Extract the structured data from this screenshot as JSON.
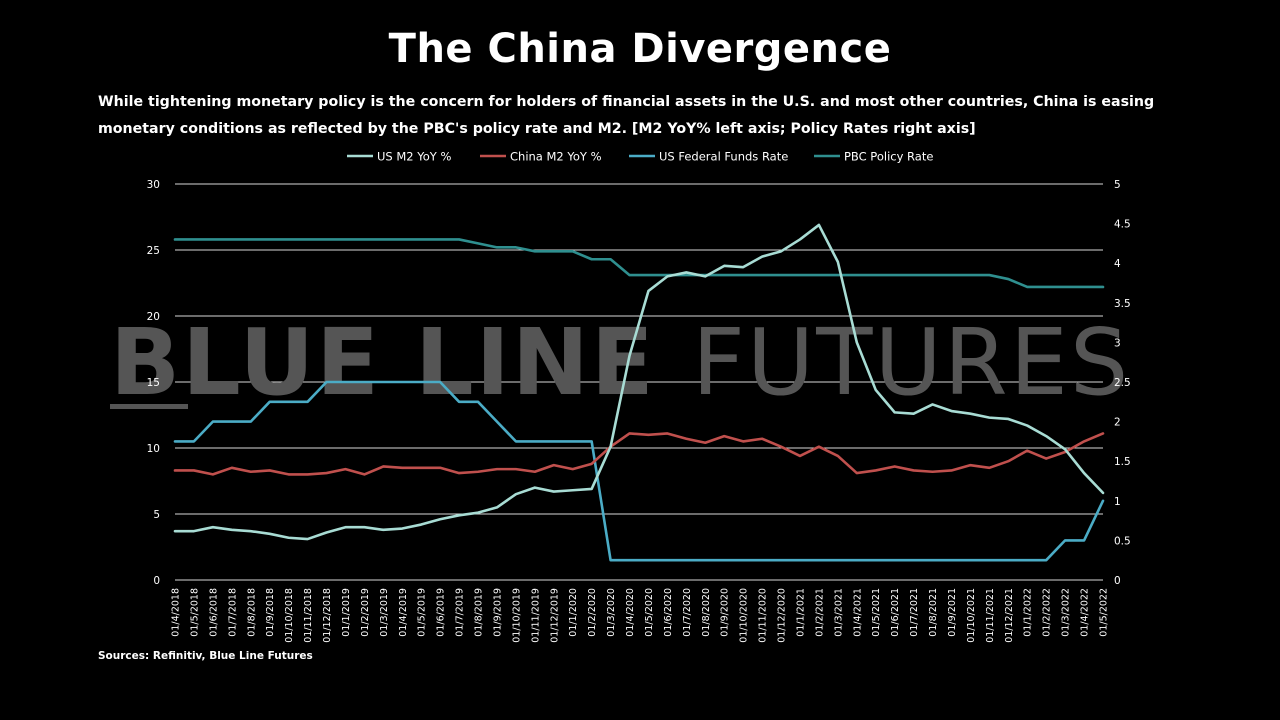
{
  "title": "The China Divergence",
  "subtitle": "While tightening monetary policy is the concern for holders of financial assets in the U.S. and most other countries, China is easing monetary conditions as reflected by the PBC's policy rate and M2. [M2 YoY% left axis; Policy Rates right axis]",
  "source": "Sources: Refinitiv, Blue Line Futures",
  "watermark": {
    "bold": "BLUE LINE",
    "light": "FUTURES"
  },
  "chart_data": {
    "type": "line",
    "x": [
      "01/4/2018",
      "01/5/2018",
      "01/6/2018",
      "01/7/2018",
      "01/8/2018",
      "01/9/2018",
      "01/10/2018",
      "01/11/2018",
      "01/12/2018",
      "01/1/2019",
      "01/2/2019",
      "01/3/2019",
      "01/4/2019",
      "01/5/2019",
      "01/6/2019",
      "01/7/2019",
      "01/8/2019",
      "01/9/2019",
      "01/10/2019",
      "01/11/2019",
      "01/12/2019",
      "01/1/2020",
      "01/2/2020",
      "01/3/2020",
      "01/4/2020",
      "01/5/2020",
      "01/6/2020",
      "01/7/2020",
      "01/8/2020",
      "01/9/2020",
      "01/10/2020",
      "01/11/2020",
      "01/12/2020",
      "01/1/2021",
      "01/2/2021",
      "01/3/2021",
      "01/4/2021",
      "01/5/2021",
      "01/6/2021",
      "01/7/2021",
      "01/8/2021",
      "01/9/2021",
      "01/10/2021",
      "01/11/2021",
      "01/12/2021",
      "01/1/2022",
      "01/2/2022",
      "01/3/2022",
      "01/4/2022",
      "01/5/2022"
    ],
    "y_left": {
      "ylim": [
        0,
        30
      ],
      "ticks": [
        0,
        5,
        10,
        15,
        20,
        25,
        30
      ]
    },
    "y_right": {
      "ylim": [
        0,
        5
      ],
      "ticks": [
        "0",
        "0.5",
        "1",
        "1.5",
        "2",
        "2.5",
        "3",
        "3.5",
        "4",
        "4.5",
        "5"
      ]
    },
    "grid": true,
    "legend": "top",
    "series": [
      {
        "name": "US M2 YoY %",
        "axis": "left",
        "color": "#a8dcd4",
        "values": [
          3.7,
          3.7,
          4.0,
          3.8,
          3.7,
          3.5,
          3.2,
          3.1,
          3.6,
          4.0,
          4.0,
          3.8,
          3.9,
          4.2,
          4.6,
          4.9,
          5.1,
          5.5,
          6.5,
          7.0,
          6.7,
          6.8,
          6.9,
          10.1,
          17.0,
          21.9,
          23.0,
          23.3,
          23.0,
          23.8,
          23.7,
          24.5,
          24.9,
          25.8,
          26.9,
          24.1,
          18.0,
          14.4,
          12.7,
          12.6,
          13.3,
          12.8,
          12.6,
          12.3,
          12.2,
          11.7,
          10.9,
          9.9,
          8.1,
          6.6
        ]
      },
      {
        "name": "China M2 YoY %",
        "axis": "left",
        "color": "#c0504d",
        "values": [
          8.3,
          8.3,
          8.0,
          8.5,
          8.2,
          8.3,
          8.0,
          8.0,
          8.1,
          8.4,
          8.0,
          8.6,
          8.5,
          8.5,
          8.5,
          8.1,
          8.2,
          8.4,
          8.4,
          8.2,
          8.7,
          8.4,
          8.8,
          10.1,
          11.1,
          11.0,
          11.1,
          10.7,
          10.4,
          10.9,
          10.5,
          10.7,
          10.1,
          9.4,
          10.1,
          9.4,
          8.1,
          8.3,
          8.6,
          8.3,
          8.2,
          8.3,
          8.7,
          8.5,
          9.0,
          9.8,
          9.2,
          9.7,
          10.5,
          11.1
        ]
      },
      {
        "name": "US Federal Funds Rate",
        "axis": "right",
        "color": "#4bacc6",
        "values": [
          1.75,
          1.75,
          2.0,
          2.0,
          2.0,
          2.25,
          2.25,
          2.25,
          2.5,
          2.5,
          2.5,
          2.5,
          2.5,
          2.5,
          2.5,
          2.25,
          2.25,
          2.0,
          1.75,
          1.75,
          1.75,
          1.75,
          1.75,
          0.25,
          0.25,
          0.25,
          0.25,
          0.25,
          0.25,
          0.25,
          0.25,
          0.25,
          0.25,
          0.25,
          0.25,
          0.25,
          0.25,
          0.25,
          0.25,
          0.25,
          0.25,
          0.25,
          0.25,
          0.25,
          0.25,
          0.25,
          0.25,
          0.5,
          0.5,
          1.0
        ]
      },
      {
        "name": "PBC Policy Rate",
        "axis": "right",
        "color": "#2f8f8f",
        "values": [
          4.3,
          4.3,
          4.3,
          4.3,
          4.3,
          4.3,
          4.3,
          4.3,
          4.3,
          4.3,
          4.3,
          4.3,
          4.3,
          4.3,
          4.3,
          4.3,
          4.25,
          4.2,
          4.2,
          4.15,
          4.15,
          4.15,
          4.05,
          4.05,
          3.85,
          3.85,
          3.85,
          3.85,
          3.85,
          3.85,
          3.85,
          3.85,
          3.85,
          3.85,
          3.85,
          3.85,
          3.85,
          3.85,
          3.85,
          3.85,
          3.85,
          3.85,
          3.85,
          3.85,
          3.8,
          3.7,
          3.7,
          3.7,
          3.7,
          3.7
        ]
      }
    ]
  }
}
